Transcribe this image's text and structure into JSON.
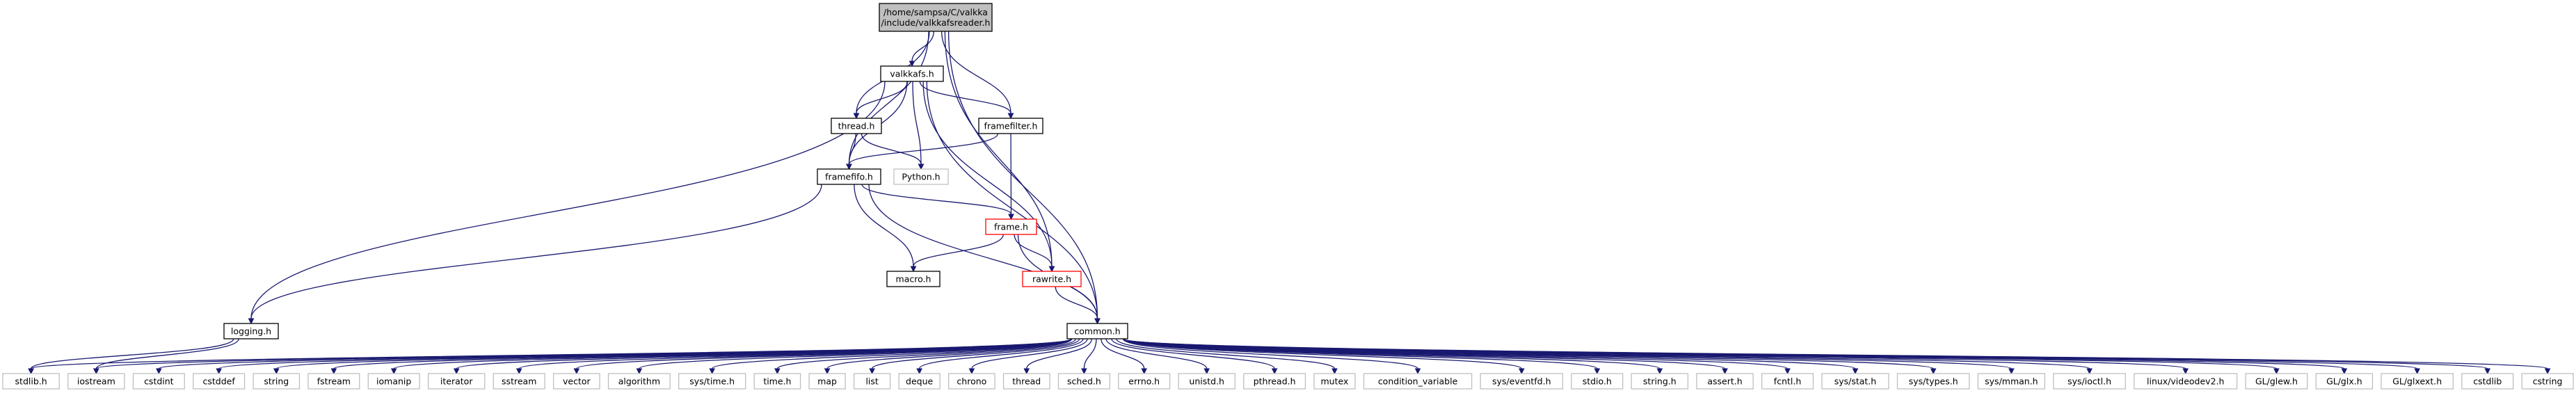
{
  "colors": {
    "edge": "#191970",
    "root_fill": "#bfbfbf",
    "root_border": "#000000",
    "documented_border": "#000000",
    "undocumented_border": "#bfbfbf",
    "truncated_border": "#ff0000",
    "node_fill": "#ffffff"
  },
  "nodes": [
    {
      "id": "root",
      "lines": [
        "/home/sampsa/C/valkka",
        "/include/valkkafsreader.h"
      ],
      "kind": "root"
    },
    {
      "id": "valkkafs",
      "lines": [
        "valkkafs.h"
      ],
      "kind": "documented"
    },
    {
      "id": "thread",
      "lines": [
        "thread.h"
      ],
      "kind": "documented"
    },
    {
      "id": "framefilter",
      "lines": [
        "framefilter.h"
      ],
      "kind": "documented"
    },
    {
      "id": "framefifo",
      "lines": [
        "framefifo.h"
      ],
      "kind": "documented"
    },
    {
      "id": "python",
      "lines": [
        "Python.h"
      ],
      "kind": "undocumented"
    },
    {
      "id": "frame",
      "lines": [
        "frame.h"
      ],
      "kind": "truncated"
    },
    {
      "id": "macro",
      "lines": [
        "macro.h"
      ],
      "kind": "documented"
    },
    {
      "id": "rawrite",
      "lines": [
        "rawrite.h"
      ],
      "kind": "truncated"
    },
    {
      "id": "logging",
      "lines": [
        "logging.h"
      ],
      "kind": "documented"
    },
    {
      "id": "common",
      "lines": [
        "common.h"
      ],
      "kind": "documented"
    },
    {
      "id": "stdlib",
      "lines": [
        "stdlib.h"
      ],
      "kind": "undocumented"
    },
    {
      "id": "iostream",
      "lines": [
        "iostream"
      ],
      "kind": "undocumented"
    },
    {
      "id": "cstdint",
      "lines": [
        "cstdint"
      ],
      "kind": "undocumented"
    },
    {
      "id": "cstddef",
      "lines": [
        "cstddef"
      ],
      "kind": "undocumented"
    },
    {
      "id": "string",
      "lines": [
        "string"
      ],
      "kind": "undocumented"
    },
    {
      "id": "fstream",
      "lines": [
        "fstream"
      ],
      "kind": "undocumented"
    },
    {
      "id": "iomanip",
      "lines": [
        "iomanip"
      ],
      "kind": "undocumented"
    },
    {
      "id": "iterator",
      "lines": [
        "iterator"
      ],
      "kind": "undocumented"
    },
    {
      "id": "sstream",
      "lines": [
        "sstream"
      ],
      "kind": "undocumented"
    },
    {
      "id": "vector",
      "lines": [
        "vector"
      ],
      "kind": "undocumented"
    },
    {
      "id": "algorithm",
      "lines": [
        "algorithm"
      ],
      "kind": "undocumented"
    },
    {
      "id": "systime",
      "lines": [
        "sys/time.h"
      ],
      "kind": "undocumented"
    },
    {
      "id": "time",
      "lines": [
        "time.h"
      ],
      "kind": "undocumented"
    },
    {
      "id": "map",
      "lines": [
        "map"
      ],
      "kind": "undocumented"
    },
    {
      "id": "list",
      "lines": [
        "list"
      ],
      "kind": "undocumented"
    },
    {
      "id": "deque",
      "lines": [
        "deque"
      ],
      "kind": "undocumented"
    },
    {
      "id": "chrono",
      "lines": [
        "chrono"
      ],
      "kind": "undocumented"
    },
    {
      "id": "threadstd",
      "lines": [
        "thread"
      ],
      "kind": "undocumented"
    },
    {
      "id": "sched",
      "lines": [
        "sched.h"
      ],
      "kind": "undocumented"
    },
    {
      "id": "errno",
      "lines": [
        "errno.h"
      ],
      "kind": "undocumented"
    },
    {
      "id": "unistd",
      "lines": [
        "unistd.h"
      ],
      "kind": "undocumented"
    },
    {
      "id": "pthread",
      "lines": [
        "pthread.h"
      ],
      "kind": "undocumented"
    },
    {
      "id": "mutex",
      "lines": [
        "mutex"
      ],
      "kind": "undocumented"
    },
    {
      "id": "condvar",
      "lines": [
        "condition_variable"
      ],
      "kind": "undocumented"
    },
    {
      "id": "eventfd",
      "lines": [
        "sys/eventfd.h"
      ],
      "kind": "undocumented"
    },
    {
      "id": "stdio",
      "lines": [
        "stdio.h"
      ],
      "kind": "undocumented"
    },
    {
      "id": "stringh",
      "lines": [
        "string.h"
      ],
      "kind": "undocumented"
    },
    {
      "id": "assert",
      "lines": [
        "assert.h"
      ],
      "kind": "undocumented"
    },
    {
      "id": "fcntl",
      "lines": [
        "fcntl.h"
      ],
      "kind": "undocumented"
    },
    {
      "id": "sysstat",
      "lines": [
        "sys/stat.h"
      ],
      "kind": "undocumented"
    },
    {
      "id": "systypes",
      "lines": [
        "sys/types.h"
      ],
      "kind": "undocumented"
    },
    {
      "id": "sysmman",
      "lines": [
        "sys/mman.h"
      ],
      "kind": "undocumented"
    },
    {
      "id": "sysioctl",
      "lines": [
        "sys/ioctl.h"
      ],
      "kind": "undocumented"
    },
    {
      "id": "videodev2",
      "lines": [
        "linux/videodev2.h"
      ],
      "kind": "undocumented"
    },
    {
      "id": "glew",
      "lines": [
        "GL/glew.h"
      ],
      "kind": "undocumented"
    },
    {
      "id": "glx",
      "lines": [
        "GL/glx.h"
      ],
      "kind": "undocumented"
    },
    {
      "id": "glxext",
      "lines": [
        "GL/glxext.h"
      ],
      "kind": "undocumented"
    },
    {
      "id": "cstdlib",
      "lines": [
        "cstdlib"
      ],
      "kind": "undocumented"
    },
    {
      "id": "cstring",
      "lines": [
        "cstring"
      ],
      "kind": "undocumented"
    }
  ],
  "edges": [
    [
      "root",
      "valkkafs"
    ],
    [
      "root",
      "thread"
    ],
    [
      "root",
      "framefilter"
    ],
    [
      "root",
      "framefifo"
    ],
    [
      "root",
      "rawrite"
    ],
    [
      "root",
      "common"
    ],
    [
      "valkkafs",
      "thread"
    ],
    [
      "valkkafs",
      "framefilter"
    ],
    [
      "valkkafs",
      "framefifo"
    ],
    [
      "valkkafs",
      "python"
    ],
    [
      "valkkafs",
      "logging"
    ],
    [
      "valkkafs",
      "rawrite"
    ],
    [
      "valkkafs",
      "common"
    ],
    [
      "thread",
      "framefifo"
    ],
    [
      "thread",
      "python"
    ],
    [
      "framefilter",
      "framefifo"
    ],
    [
      "framefilter",
      "frame"
    ],
    [
      "framefifo",
      "frame"
    ],
    [
      "framefifo",
      "macro"
    ],
    [
      "framefifo",
      "logging"
    ],
    [
      "framefifo",
      "common"
    ],
    [
      "frame",
      "macro"
    ],
    [
      "frame",
      "rawrite"
    ],
    [
      "frame",
      "common"
    ],
    [
      "rawrite",
      "common"
    ],
    [
      "logging",
      "stdlib"
    ],
    [
      "logging",
      "iostream"
    ],
    [
      "common",
      "stdlib"
    ],
    [
      "common",
      "iostream"
    ],
    [
      "common",
      "cstdint"
    ],
    [
      "common",
      "cstddef"
    ],
    [
      "common",
      "string"
    ],
    [
      "common",
      "fstream"
    ],
    [
      "common",
      "iomanip"
    ],
    [
      "common",
      "iterator"
    ],
    [
      "common",
      "sstream"
    ],
    [
      "common",
      "vector"
    ],
    [
      "common",
      "algorithm"
    ],
    [
      "common",
      "systime"
    ],
    [
      "common",
      "time"
    ],
    [
      "common",
      "map"
    ],
    [
      "common",
      "list"
    ],
    [
      "common",
      "deque"
    ],
    [
      "common",
      "chrono"
    ],
    [
      "common",
      "threadstd"
    ],
    [
      "common",
      "sched"
    ],
    [
      "common",
      "errno"
    ],
    [
      "common",
      "unistd"
    ],
    [
      "common",
      "pthread"
    ],
    [
      "common",
      "mutex"
    ],
    [
      "common",
      "condvar"
    ],
    [
      "common",
      "eventfd"
    ],
    [
      "common",
      "stdio"
    ],
    [
      "common",
      "stringh"
    ],
    [
      "common",
      "assert"
    ],
    [
      "common",
      "fcntl"
    ],
    [
      "common",
      "sysstat"
    ],
    [
      "common",
      "systypes"
    ],
    [
      "common",
      "sysmman"
    ],
    [
      "common",
      "sysioctl"
    ],
    [
      "common",
      "videodev2"
    ],
    [
      "common",
      "glew"
    ],
    [
      "common",
      "glx"
    ],
    [
      "common",
      "glxext"
    ],
    [
      "common",
      "cstdlib"
    ],
    [
      "common",
      "cstring"
    ]
  ]
}
